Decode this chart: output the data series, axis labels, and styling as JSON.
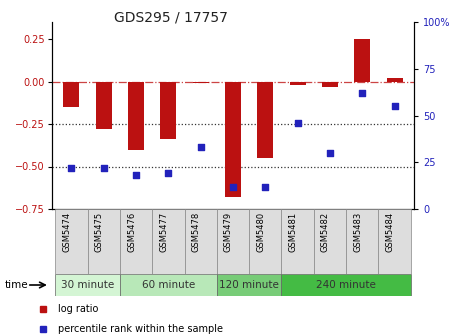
{
  "title": "GDS295 / 17757",
  "samples": [
    "GSM5474",
    "GSM5475",
    "GSM5476",
    "GSM5477",
    "GSM5478",
    "GSM5479",
    "GSM5480",
    "GSM5481",
    "GSM5482",
    "GSM5483",
    "GSM5484"
  ],
  "log_ratio": [
    -0.15,
    -0.28,
    -0.4,
    -0.34,
    -0.01,
    -0.68,
    -0.45,
    -0.02,
    -0.03,
    0.25,
    0.02
  ],
  "percentile_rank": [
    22,
    22,
    18,
    19,
    33,
    12,
    12,
    46,
    30,
    62,
    55
  ],
  "bar_color": "#bb1111",
  "dot_color": "#2222bb",
  "ylim_left": [
    -0.75,
    0.35
  ],
  "ylim_right": [
    0,
    100
  ],
  "groups": [
    {
      "label": "30 minute",
      "start": 0,
      "end": 1,
      "color": "#d4f5d4"
    },
    {
      "label": "60 minute",
      "start": 2,
      "end": 4,
      "color": "#b8e8b8"
    },
    {
      "label": "120 minute",
      "start": 5,
      "end": 6,
      "color": "#77cc77"
    },
    {
      "label": "240 minute",
      "start": 7,
      "end": 10,
      "color": "#44bb44"
    }
  ],
  "hlines": [
    0.0,
    -0.25,
    -0.5
  ],
  "hline_styles": [
    "dashdot",
    "dotted",
    "dotted"
  ],
  "hline_colors": [
    "#cc4444",
    "#333333",
    "#333333"
  ],
  "left_yticks": [
    0.25,
    0.0,
    -0.25,
    -0.5,
    -0.75
  ],
  "right_yticks": [
    100,
    75,
    50,
    25,
    0
  ],
  "legend_items": [
    "log ratio",
    "percentile rank within the sample"
  ],
  "time_label": "time",
  "bar_width": 0.5
}
